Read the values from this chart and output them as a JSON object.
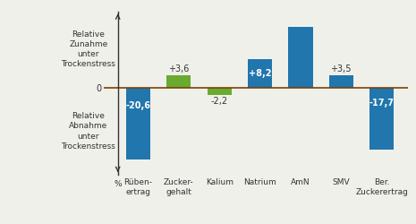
{
  "categories": [
    "Rüben-\nertrag",
    "Zucker-\ngehalt",
    "Kalium",
    "Natrium",
    "AmN",
    "SMV",
    "Ber.\nZuckerertrag"
  ],
  "values": [
    -20.6,
    3.6,
    -2.2,
    8.2,
    17.5,
    3.5,
    -17.7
  ],
  "bar_colors": [
    "#2176ae",
    "#6aaa2e",
    "#6aaa2e",
    "#2176ae",
    "#2176ae",
    "#2176ae",
    "#2176ae"
  ],
  "labels": [
    "-20,6",
    "+3,6",
    "-2,2",
    "+8,2",
    "",
    "+3,5",
    "-17,7"
  ],
  "label_inside": [
    true,
    false,
    false,
    true,
    false,
    false,
    true
  ],
  "label_colors_inside": [
    "white",
    "black",
    "black",
    "white",
    "white",
    "black",
    "white"
  ],
  "ylabel_top": "Relative\nZunahme\nunter\nTrockenstress",
  "ylabel_bottom": "Relative\nAbnahme\nunter\nTrockenstress",
  "percent_label": "%",
  "ylim": [
    -25,
    22
  ],
  "background_color": "#f0f0eb",
  "bar_width": 0.6,
  "axis_color": "#333333",
  "zero_line_color": "#7a4000"
}
